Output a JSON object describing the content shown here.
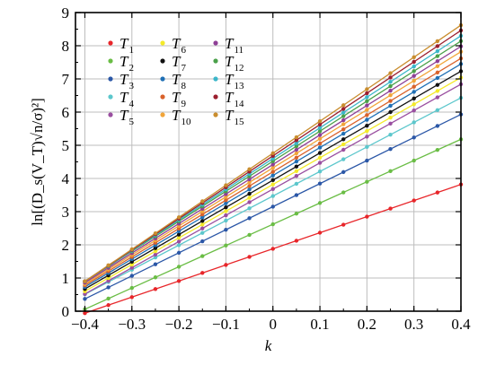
{
  "chart_data": {
    "type": "line",
    "title": "",
    "xlabel": "k",
    "ylabel": "ln[(D_s(V_T)√n/σ)²]",
    "xlim": [
      -0.42,
      0.4
    ],
    "ylim": [
      0,
      9
    ],
    "x_ticks": [
      -0.4,
      -0.3,
      -0.2,
      -0.1,
      0,
      0.1,
      0.2,
      0.3,
      0.4
    ],
    "x_tick_labels": [
      "−0.4",
      "−0.3",
      "−0.2",
      "−0.1",
      "0",
      "0.1",
      "0.2",
      "0.3",
      "0.4"
    ],
    "y_ticks": [
      0,
      1,
      2,
      3,
      4,
      5,
      6,
      7,
      8,
      9
    ],
    "y_tick_labels": [
      "0",
      "1",
      "2",
      "3",
      "4",
      "5",
      "6",
      "7",
      "8",
      "9"
    ],
    "grid": true,
    "legend_position": "top-left, three columns",
    "x": [
      -0.4,
      -0.35,
      -0.3,
      -0.25,
      -0.2,
      -0.15,
      -0.1,
      -0.05,
      0,
      0.05,
      0.1,
      0.15,
      0.2,
      0.25,
      0.3,
      0.35,
      0.4
    ],
    "series": [
      {
        "name": "T1",
        "color": "#e8262a",
        "line": {
          "intercept": 1.88,
          "slope": 4.85
        }
      },
      {
        "name": "T2",
        "color": "#6abd45",
        "line": {
          "intercept": 2.62,
          "slope": 6.4
        }
      },
      {
        "name": "T3",
        "color": "#2b57a7",
        "line": {
          "intercept": 3.15,
          "slope": 6.95
        }
      },
      {
        "name": "T4",
        "color": "#5cc7cc",
        "line": {
          "intercept": 3.47,
          "slope": 7.4
        }
      },
      {
        "name": "T5",
        "color": "#9a4fa0",
        "line": {
          "intercept": 3.68,
          "slope": 7.9
        }
      },
      {
        "name": "T6",
        "color": "#f4ea2a",
        "line": {
          "intercept": 3.82,
          "slope": 8.05
        }
      },
      {
        "name": "T7",
        "color": "#111111",
        "line": {
          "intercept": 3.95,
          "slope": 8.2
        }
      },
      {
        "name": "T8",
        "color": "#1f6fb5",
        "line": {
          "intercept": 4.09,
          "slope": 8.4
        }
      },
      {
        "name": "T9",
        "color": "#d9622b",
        "line": {
          "intercept": 4.2,
          "slope": 8.55
        }
      },
      {
        "name": "T10",
        "color": "#f1a53a",
        "line": {
          "intercept": 4.32,
          "slope": 8.75
        }
      },
      {
        "name": "T11",
        "color": "#8e3f96",
        "line": {
          "intercept": 4.42,
          "slope": 8.9
        }
      },
      {
        "name": "T12",
        "color": "#4aa04a",
        "line": {
          "intercept": 4.52,
          "slope": 9.05
        }
      },
      {
        "name": "T13",
        "color": "#3bb6c9",
        "line": {
          "intercept": 4.6,
          "slope": 9.25
        }
      },
      {
        "name": "T14",
        "color": "#9b1f2e",
        "line": {
          "intercept": 4.68,
          "slope": 9.45
        }
      },
      {
        "name": "T15",
        "color": "#c98d2e",
        "line": {
          "intercept": 4.76,
          "slope": 9.65
        }
      }
    ]
  }
}
